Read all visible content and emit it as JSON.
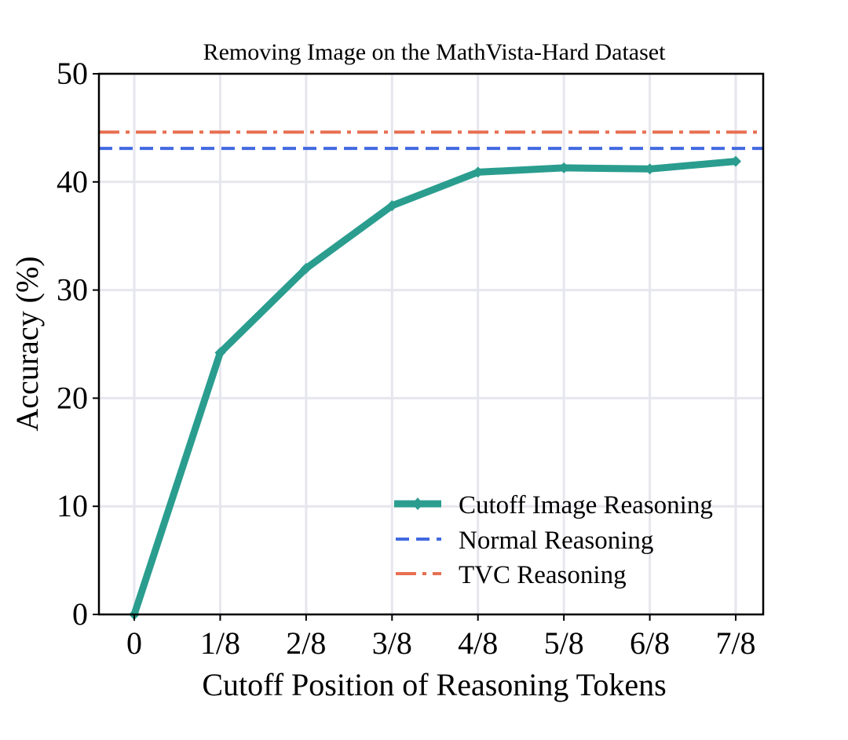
{
  "chart_data": {
    "type": "line",
    "title": "Removing Image on the MathVista-Hard Dataset",
    "xlabel": "Cutoff Position of Reasoning Tokens",
    "ylabel": "Accuracy (%)",
    "ylim": [
      0,
      50
    ],
    "categories": [
      "0",
      "1/8",
      "2/8",
      "3/8",
      "4/8",
      "5/8",
      "6/8",
      "7/8"
    ],
    "y_ticks": [
      "0",
      "10",
      "20",
      "30",
      "40",
      "50"
    ],
    "grid": true,
    "legend_position": "lower-right",
    "series": [
      {
        "name": "Cutoff Image Reasoning",
        "style": "solid-with-markers",
        "color": "#2a9d8f",
        "values": [
          0.0,
          24.2,
          32.0,
          37.8,
          40.9,
          41.3,
          41.2,
          41.9
        ]
      },
      {
        "name": "Normal Reasoning",
        "style": "dashed",
        "color": "#4169e1",
        "constant": 43.1
      },
      {
        "name": "TVC Reasoning",
        "style": "dash-dot",
        "color": "#e76f51",
        "constant": 44.6
      }
    ]
  }
}
